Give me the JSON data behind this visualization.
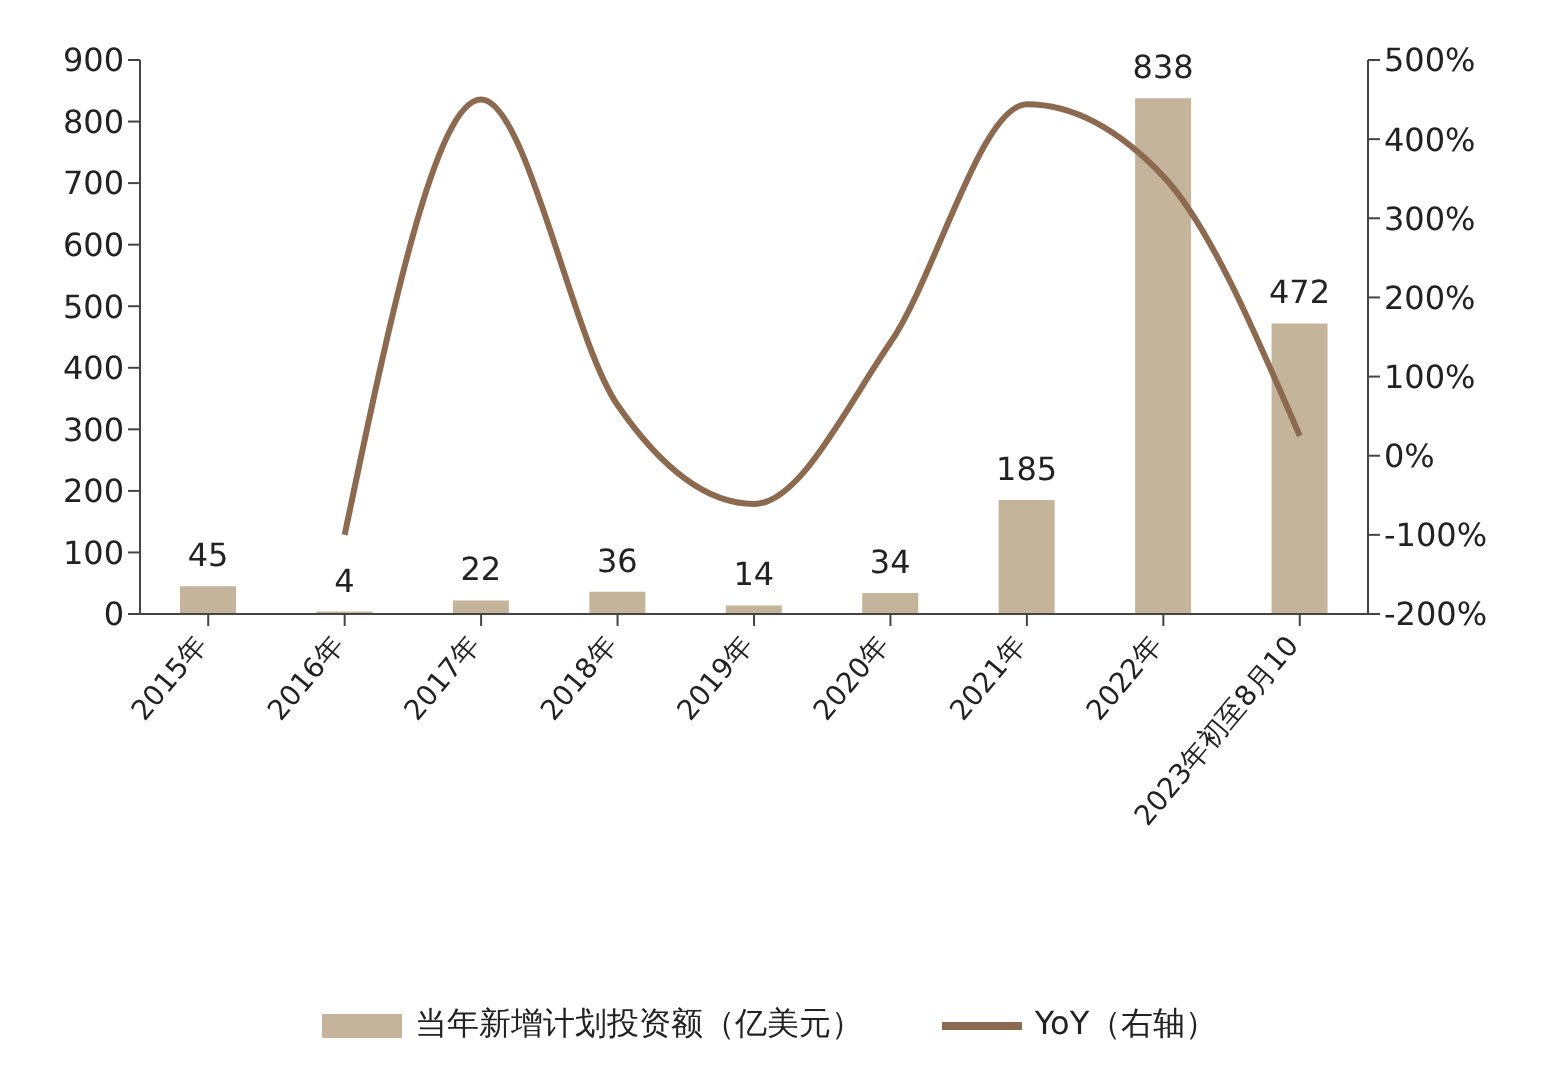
{
  "chart_data": {
    "type": "bar",
    "categories": [
      "2015年",
      "2016年",
      "2017年",
      "2018年",
      "2019年",
      "2020年",
      "2021年",
      "2022年",
      "2023年初至8月10"
    ],
    "series": [
      {
        "name": "当年新增计划投资额（亿美元）",
        "color": "#c4b49a",
        "values": [
          45,
          4,
          22,
          36,
          14,
          34,
          185,
          838,
          472
        ],
        "value_labels": [
          "45",
          "4",
          "22",
          "36",
          "14",
          "34",
          "185",
          "838",
          "472"
        ]
      },
      {
        "name": "YoY（右轴）",
        "type": "line",
        "axis": "y2",
        "color": "#8b6a4f",
        "values": [
          null,
          -100,
          450,
          64,
          -61,
          143,
          444,
          353,
          25
        ]
      }
    ],
    "ylim": [
      0,
      900
    ],
    "yticks": [
      0,
      100,
      200,
      300,
      400,
      500,
      600,
      700,
      800,
      900
    ],
    "y2lim": [
      -200,
      500
    ],
    "y2ticks": [
      {
        "value": -200,
        "label": "-200%"
      },
      {
        "value": -100,
        "label": "-100%"
      },
      {
        "value": 0,
        "label": "0%"
      },
      {
        "value": 100,
        "label": "100%"
      },
      {
        "value": 200,
        "label": "200%"
      },
      {
        "value": 300,
        "label": "300%"
      },
      {
        "value": 400,
        "label": "400%"
      },
      {
        "value": 500,
        "label": "500%"
      }
    ],
    "legend": "bottom",
    "grid": false,
    "marker": "none"
  }
}
